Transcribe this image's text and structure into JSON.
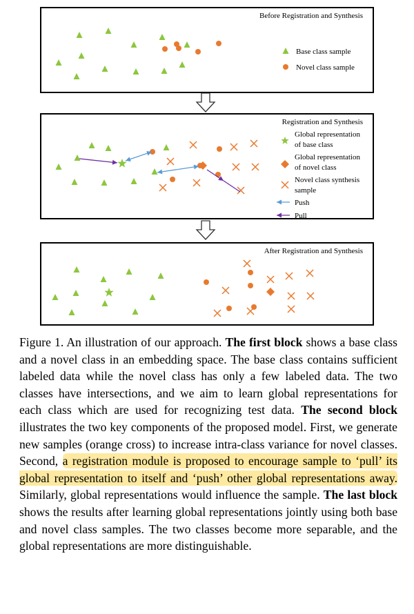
{
  "colors": {
    "green": "#8dc63f",
    "orange": "#e87a2e",
    "push_blue": "#5b9bd5",
    "pull_purple": "#7030a0",
    "highlight": "#fde9a0"
  },
  "icons": [
    "triangle-icon",
    "dot-icon",
    "cross-icon",
    "star-icon",
    "diamond-icon",
    "push-arrow-icon",
    "pull-arrow-icon",
    "down-arrow-icon"
  ],
  "block1": {
    "title": "Before Registration and Synthesis",
    "legend": {
      "base": "Base class sample",
      "novel": "Novel class sample"
    }
  },
  "block2": {
    "title": "Registration and Synthesis",
    "legend": {
      "global_base_1": "Global representation",
      "global_base_2": "of base class",
      "global_novel_1": "Global representation",
      "global_novel_2": "of novel class",
      "synth_1": "Novel class synthesis",
      "synth_2": "sample",
      "push": "Push",
      "pull": "Pull"
    }
  },
  "block3": {
    "title": "After Registration and Synthesis"
  },
  "caption": {
    "label": "Figure 1.",
    "t1": " An illustration of our approach. ",
    "b1": "The first block",
    "t2": " shows a base class and a novel class in an embedding space. The base class contains sufficient labeled data while the novel class has only a few labeled data. The two classes have intersections, and we aim to learn global representations for each class which are used for recognizing test data. ",
    "b2": "The second block",
    "t3": " illustrates the two key components of the proposed model. First, we generate new samples (orange cross) to increase intra-class variance for novel classes. Second, ",
    "hl": "a registration module is proposed to encourage sample to ‘pull’ its global representation to itself and ‘push’ other global representations away.",
    "t4": " Similarly, global representations would influence the sample. ",
    "b3": "The last block",
    "t5": " shows the results after learning global representations jointly using both base and novel class samples. The two classes become more separable, and the global representations are more distinguishable."
  }
}
